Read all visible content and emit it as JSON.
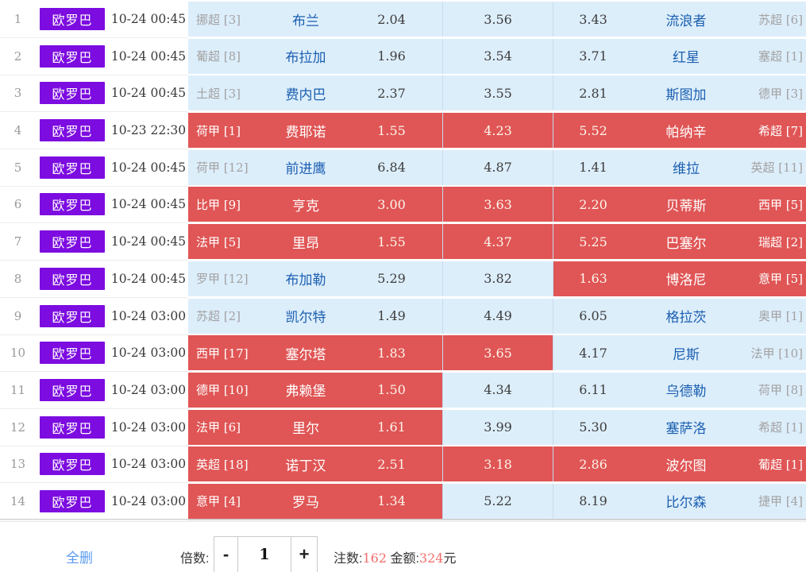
{
  "table": {
    "rows": [
      {
        "no": "1",
        "badge": "欧罗巴",
        "time": "10-24 00:45",
        "home_league": "挪超 [3]",
        "home": "布兰",
        "odds_win": "2.04",
        "odds_draw": "3.56",
        "odds_lose": "3.43",
        "away": "流浪者",
        "away_league": "苏超 [6]",
        "sel_win": false,
        "sel_draw": false,
        "sel_lose": false
      },
      {
        "no": "2",
        "badge": "欧罗巴",
        "time": "10-24 00:45",
        "home_league": "葡超 [8]",
        "home": "布拉加",
        "odds_win": "1.96",
        "odds_draw": "3.54",
        "odds_lose": "3.71",
        "away": "红星",
        "away_league": "塞超 [1]",
        "sel_win": false,
        "sel_draw": false,
        "sel_lose": false
      },
      {
        "no": "3",
        "badge": "欧罗巴",
        "time": "10-24 00:45",
        "home_league": "土超 [3]",
        "home": "费内巴",
        "odds_win": "2.37",
        "odds_draw": "3.55",
        "odds_lose": "2.81",
        "away": "斯图加",
        "away_league": "德甲 [3]",
        "sel_win": false,
        "sel_draw": false,
        "sel_lose": false
      },
      {
        "no": "4",
        "badge": "欧罗巴",
        "time": "10-23 22:30",
        "home_league": "荷甲 [1]",
        "home": "费耶诺",
        "odds_win": "1.55",
        "odds_draw": "4.23",
        "odds_lose": "5.52",
        "away": "帕纳辛",
        "away_league": "希超 [7]",
        "sel_win": true,
        "sel_draw": true,
        "sel_lose": true
      },
      {
        "no": "5",
        "badge": "欧罗巴",
        "time": "10-24 00:45",
        "home_league": "荷甲 [12]",
        "home": "前进鹰",
        "odds_win": "6.84",
        "odds_draw": "4.87",
        "odds_lose": "1.41",
        "away": "维拉",
        "away_league": "英超 [11]",
        "sel_win": false,
        "sel_draw": false,
        "sel_lose": false
      },
      {
        "no": "6",
        "badge": "欧罗巴",
        "time": "10-24 00:45",
        "home_league": "比甲 [9]",
        "home": "亨克",
        "odds_win": "3.00",
        "odds_draw": "3.63",
        "odds_lose": "2.20",
        "away": "贝蒂斯",
        "away_league": "西甲 [5]",
        "sel_win": true,
        "sel_draw": true,
        "sel_lose": true
      },
      {
        "no": "7",
        "badge": "欧罗巴",
        "time": "10-24 00:45",
        "home_league": "法甲 [5]",
        "home": "里昂",
        "odds_win": "1.55",
        "odds_draw": "4.37",
        "odds_lose": "5.25",
        "away": "巴塞尔",
        "away_league": "瑞超 [2]",
        "sel_win": true,
        "sel_draw": true,
        "sel_lose": true
      },
      {
        "no": "8",
        "badge": "欧罗巴",
        "time": "10-24 00:45",
        "home_league": "罗甲 [12]",
        "home": "布加勒",
        "odds_win": "5.29",
        "odds_draw": "3.82",
        "odds_lose": "1.63",
        "away": "博洛尼",
        "away_league": "意甲 [5]",
        "sel_win": false,
        "sel_draw": false,
        "sel_lose": true
      },
      {
        "no": "9",
        "badge": "欧罗巴",
        "time": "10-24 03:00",
        "home_league": "苏超 [2]",
        "home": "凯尔特",
        "odds_win": "1.49",
        "odds_draw": "4.49",
        "odds_lose": "6.05",
        "away": "格拉茨",
        "away_league": "奥甲 [1]",
        "sel_win": false,
        "sel_draw": false,
        "sel_lose": false
      },
      {
        "no": "10",
        "badge": "欧罗巴",
        "time": "10-24 03:00",
        "home_league": "西甲 [17]",
        "home": "塞尔塔",
        "odds_win": "1.83",
        "odds_draw": "3.65",
        "odds_lose": "4.17",
        "away": "尼斯",
        "away_league": "法甲 [10]",
        "sel_win": true,
        "sel_draw": true,
        "sel_lose": false
      },
      {
        "no": "11",
        "badge": "欧罗巴",
        "time": "10-24 03:00",
        "home_league": "德甲 [10]",
        "home": "弗赖堡",
        "odds_win": "1.50",
        "odds_draw": "4.34",
        "odds_lose": "6.11",
        "away": "乌德勒",
        "away_league": "荷甲 [8]",
        "sel_win": true,
        "sel_draw": false,
        "sel_lose": false
      },
      {
        "no": "12",
        "badge": "欧罗巴",
        "time": "10-24 03:00",
        "home_league": "法甲 [6]",
        "home": "里尔",
        "odds_win": "1.61",
        "odds_draw": "3.99",
        "odds_lose": "5.30",
        "away": "塞萨洛",
        "away_league": "希超 [1]",
        "sel_win": true,
        "sel_draw": false,
        "sel_lose": false
      },
      {
        "no": "13",
        "badge": "欧罗巴",
        "time": "10-24 03:00",
        "home_league": "英超 [18]",
        "home": "诺丁汉",
        "odds_win": "2.51",
        "odds_draw": "3.18",
        "odds_lose": "2.86",
        "away": "波尔图",
        "away_league": "葡超 [1]",
        "sel_win": true,
        "sel_draw": true,
        "sel_lose": true
      },
      {
        "no": "14",
        "badge": "欧罗巴",
        "time": "10-24 03:00",
        "home_league": "意甲 [4]",
        "home": "罗马",
        "odds_win": "1.34",
        "odds_draw": "5.22",
        "odds_lose": "8.19",
        "away": "比尔森",
        "away_league": "捷甲 [4]",
        "sel_win": true,
        "sel_draw": false,
        "sel_lose": false
      }
    ]
  },
  "footer": {
    "delete_all": "全删",
    "multiplier_label": "倍数:",
    "minus": "-",
    "multiplier_value": "1",
    "plus": "+",
    "bets_label": "注数:",
    "bets_value": "162",
    "amount_label": "金额:",
    "amount_value": "324",
    "amount_unit": "元"
  },
  "colors": {
    "badge_purple": "#7C0CE0",
    "selected_red": "#E05555",
    "row_blue": "#DDEEFB",
    "team_blue": "#1B5FB0",
    "link_blue": "#5B9BEE",
    "count_red": "#F56C6C"
  }
}
